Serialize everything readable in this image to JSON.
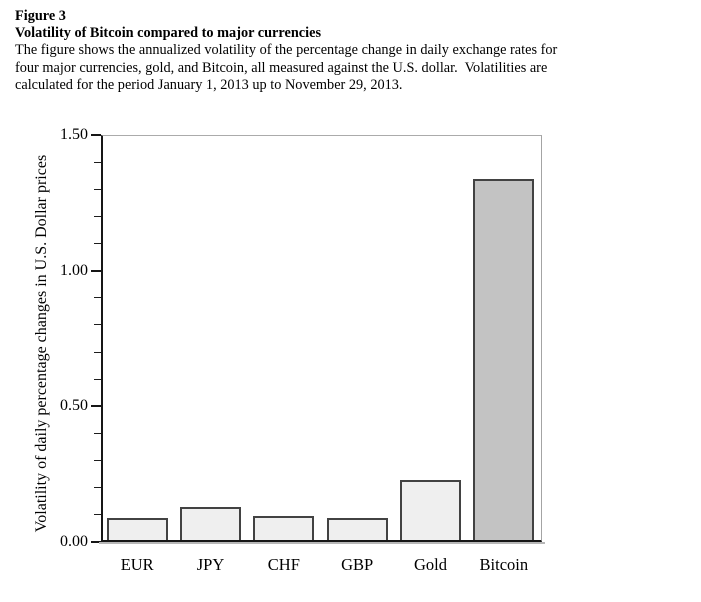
{
  "figure": {
    "label": "Figure 3",
    "title": "Volatility of Bitcoin compared to major currencies",
    "description_lines": [
      "The figure shows the annualized volatility of the percentage change in daily exchange rates for",
      "four major currencies, gold, and Bitcoin, all measured against the U.S. dollar.  Volatilities are",
      "calculated for the period January 1, 2013 up to November 29, 2013."
    ]
  },
  "chart_data": {
    "type": "bar",
    "categories": [
      "EUR",
      "JPY",
      "CHF",
      "GBP",
      "Gold",
      "Bitcoin"
    ],
    "values": [
      0.08,
      0.12,
      0.09,
      0.08,
      0.22,
      1.33
    ],
    "title": "",
    "xlabel": "",
    "ylabel": "Volatility of daily percentage changes in U.S. Dollar prices",
    "ylim": [
      0,
      1.5
    ],
    "ytick_major_labels": [
      "0.00",
      "0.50",
      "1.00",
      "1.50"
    ],
    "ytick_major_values": [
      0,
      0.5,
      1.0,
      1.5
    ],
    "ytick_minor_step": 0.1,
    "grid": false,
    "legend": false,
    "bar_fill_colors": [
      "#efefef",
      "#efefef",
      "#efefef",
      "#efefef",
      "#efefef",
      "#c3c3c3"
    ],
    "bar_border_color": "#424242",
    "axis_color": "#161616",
    "frame_color": "#a9a9a9"
  }
}
